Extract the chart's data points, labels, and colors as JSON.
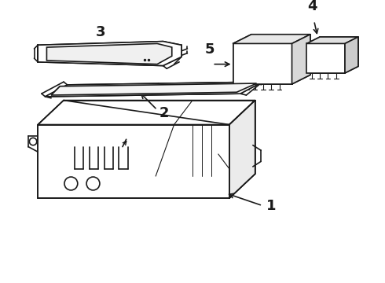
{
  "background_color": "#ffffff",
  "line_color": "#1a1a1a",
  "label_color": "#000000",
  "fig_w": 4.9,
  "fig_h": 3.6,
  "dpi": 100
}
